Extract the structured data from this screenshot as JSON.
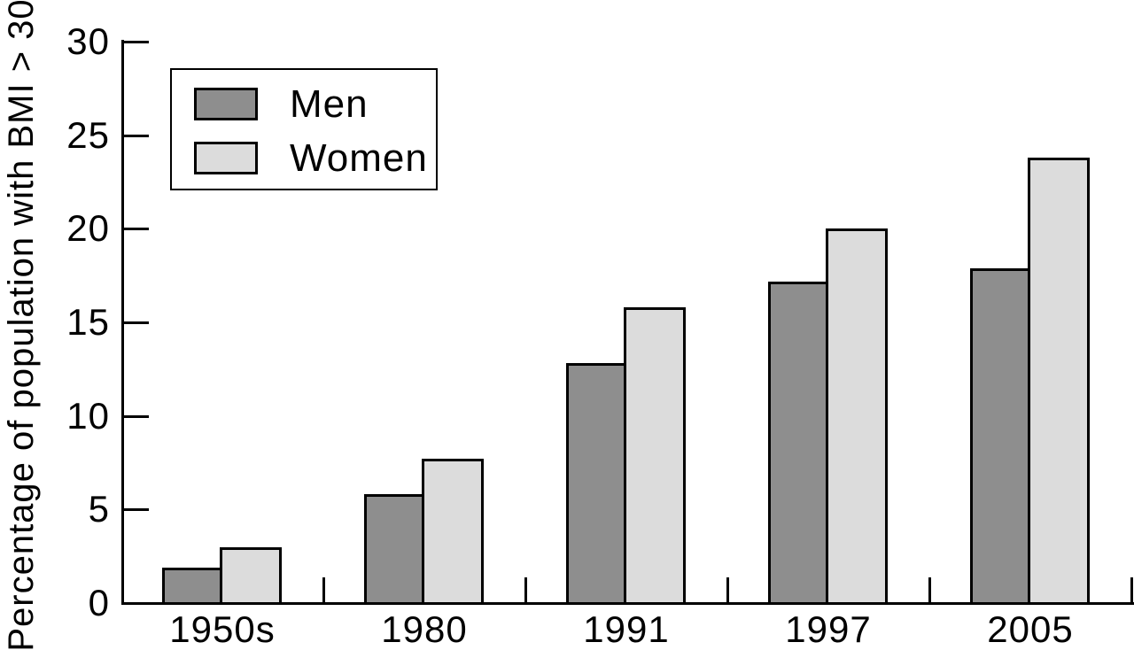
{
  "figure": {
    "background": "#ffffff",
    "text_color": "#000000"
  },
  "chart_data": {
    "type": "bar",
    "ylabel": "Percentage of population with BMI > 30",
    "categories": [
      "1950s",
      "1980",
      "1991",
      "1997",
      "2005"
    ],
    "series": [
      {
        "name": "Men",
        "color": "#8e8e8e",
        "values": [
          1.9,
          5.8,
          12.8,
          17.2,
          17.9
        ]
      },
      {
        "name": "Women",
        "color": "#dcdcdc",
        "values": [
          3.0,
          7.7,
          15.8,
          20.0,
          23.8
        ]
      }
    ],
    "ylim": [
      0,
      30
    ],
    "yticks": [
      0,
      5,
      10,
      15,
      20,
      25,
      30
    ],
    "grid": false,
    "bar_outline_color": "#000000",
    "axis_color": "#000000",
    "legend": {
      "position": "upper-left",
      "entries": [
        "Men",
        "Women"
      ]
    }
  }
}
